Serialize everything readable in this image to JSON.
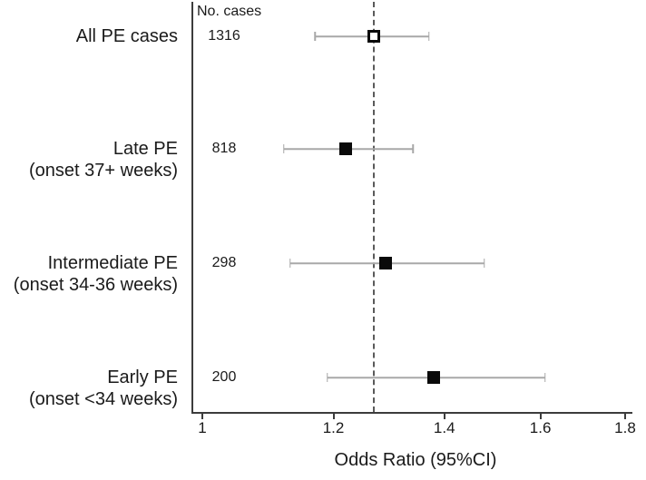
{
  "chart_data": {
    "type": "scatter",
    "variant": "forest-plot",
    "title": "",
    "xlabel": "Odds Ratio (95%CI)",
    "ylabel": "",
    "x_scale": "log",
    "xlim": [
      0.985,
      1.82
    ],
    "x_ticks": [
      {
        "value": 1.0,
        "label": "1"
      },
      {
        "value": 1.2,
        "label": "1.2"
      },
      {
        "value": 1.4,
        "label": "1.4"
      },
      {
        "value": 1.6,
        "label": "1.6"
      },
      {
        "value": 1.8,
        "label": "1.8"
      }
    ],
    "grid": false,
    "legend": "none",
    "column_header": "No. cases",
    "reference_line": {
      "value": 1.27,
      "style": "dashed"
    },
    "rows": [
      {
        "label_lines": [
          "All PE cases"
        ],
        "n_cases": "1316",
        "or": 1.27,
        "ci_low": 1.17,
        "ci_high": 1.37,
        "marker": "open-square"
      },
      {
        "label_lines": [
          "Late PE",
          "(onset 37+ weeks)"
        ],
        "n_cases": "818",
        "or": 1.22,
        "ci_low": 1.12,
        "ci_high": 1.34,
        "marker": "filled-square"
      },
      {
        "label_lines": [
          "Intermediate PE",
          "(onset 34-36 weeks)"
        ],
        "n_cases": "298",
        "or": 1.29,
        "ci_low": 1.13,
        "ci_high": 1.48,
        "marker": "filled-square"
      },
      {
        "label_lines": [
          "Early PE",
          "(onset <34 weeks)"
        ],
        "n_cases": "200",
        "or": 1.38,
        "ci_low": 1.19,
        "ci_high": 1.61,
        "marker": "filled-square"
      }
    ]
  },
  "colors": {
    "axis": "#3c3c3c",
    "error_bar": "#a8a8a8",
    "reference_line": "#5a5a5a",
    "marker_fill": "#0a0a0a",
    "open_marker_fill": "#ffffff",
    "text": "#1a1a1a",
    "background": "#ffffff"
  }
}
